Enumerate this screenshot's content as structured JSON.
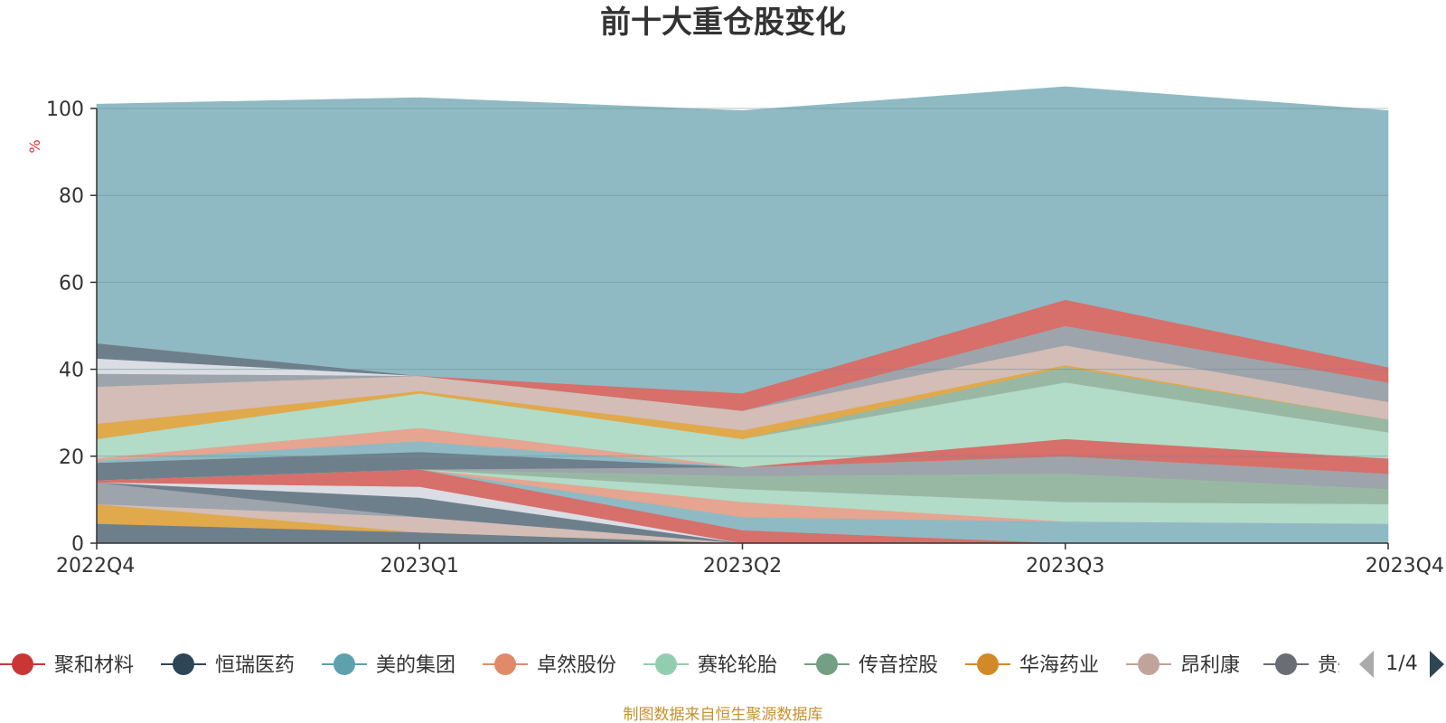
{
  "chart_data": {
    "type": "area",
    "title": "前十大重仓股变化",
    "ylabel": "%",
    "xlabel": "",
    "ylim": [
      0,
      100
    ],
    "y_ticks": [
      "0",
      "20",
      "40",
      "60",
      "80",
      "100"
    ],
    "categories": [
      "2022Q4",
      "2023Q1",
      "2023Q2",
      "2023Q3",
      "2023Q4"
    ],
    "stacked": true,
    "grid": true,
    "legend_position": "bottom",
    "series": [
      {
        "name": "",
        "color": "#6e7f8c",
        "values": [
          4.5,
          2.5,
          0,
          0,
          0
        ]
      },
      {
        "name": "",
        "color": "#e0a94c",
        "values": [
          4.5,
          0,
          0,
          0,
          0
        ]
      },
      {
        "name": "",
        "color": "#d3bdb6",
        "values": [
          0,
          3.5,
          0,
          0,
          0
        ]
      },
      {
        "name": "",
        "color": "#9ea4ab",
        "values": [
          5,
          0,
          0,
          0,
          0
        ]
      },
      {
        "name": "",
        "color": "#6e7f8c",
        "values": [
          0,
          4.5,
          0,
          0,
          0
        ]
      },
      {
        "name": "",
        "color": "#dadde3",
        "values": [
          0,
          2.5,
          0,
          0,
          0
        ]
      },
      {
        "name": "",
        "color": "#d76f6a",
        "values": [
          0.5,
          4,
          3,
          0,
          0
        ]
      },
      {
        "name": "",
        "color": "#8fbac3",
        "values": [
          0,
          0,
          3,
          5,
          4.5
        ]
      },
      {
        "name": "",
        "color": "#e5a590",
        "values": [
          0,
          0,
          3.5,
          0,
          0
        ]
      },
      {
        "name": "",
        "color": "#b2dbc8",
        "values": [
          0,
          0,
          3,
          4.5,
          4.5
        ]
      },
      {
        "name": "",
        "color": "#98b8a3",
        "values": [
          0,
          0,
          3,
          6.5,
          3.5
        ]
      },
      {
        "name": "",
        "color": "#9ea4ab",
        "values": [
          0,
          0,
          2,
          4,
          3.5
        ]
      },
      {
        "name": "",
        "color": "#6e7f8c",
        "values": [
          4,
          4,
          0,
          0,
          0
        ]
      },
      {
        "name": "",
        "color": "#8fbac3",
        "values": [
          0.5,
          2.5,
          0,
          0,
          0
        ]
      },
      {
        "name": "",
        "color": "#e5a590",
        "values": [
          0.5,
          3,
          0,
          0,
          0
        ]
      },
      {
        "name": "",
        "color": "#d76f6a",
        "values": [
          0,
          0,
          0,
          4,
          3.5
        ]
      },
      {
        "name": "",
        "color": "#b2dbc8",
        "values": [
          4.5,
          8,
          6.5,
          13,
          6
        ]
      },
      {
        "name": "",
        "color": "#98b8a3",
        "values": [
          0,
          0,
          0,
          3.5,
          3
        ]
      },
      {
        "name": "",
        "color": "#e0a94c",
        "values": [
          3.5,
          0.5,
          2,
          0.5,
          0
        ]
      },
      {
        "name": "",
        "color": "#d3bdb6",
        "values": [
          8.5,
          3.5,
          4.5,
          4.5,
          4
        ]
      },
      {
        "name": "",
        "color": "#9ea4ab",
        "values": [
          3,
          0,
          0,
          4.5,
          4.5
        ]
      },
      {
        "name": "",
        "color": "#dadde3",
        "values": [
          3.5,
          0,
          0,
          0,
          0
        ]
      },
      {
        "name": "",
        "color": "#6e7f8c",
        "values": [
          3.5,
          0,
          0,
          0,
          0
        ]
      },
      {
        "name": "",
        "color": "#d76f6a",
        "values": [
          0,
          0,
          4,
          6,
          3.5
        ]
      },
      {
        "name": "",
        "color": "#8fbac3",
        "values": [
          55,
          64,
          65,
          49,
          59
        ]
      }
    ]
  },
  "legend": {
    "items": [
      {
        "label": "聚和材料",
        "color": "#c93636"
      },
      {
        "label": "恒瑞医药",
        "color": "#2e4556"
      },
      {
        "label": "美的集团",
        "color": "#5fa0ad"
      },
      {
        "label": "卓然股份",
        "color": "#e08a6a"
      },
      {
        "label": "赛轮轮胎",
        "color": "#93cdb0"
      },
      {
        "label": "传音控股",
        "color": "#739f84"
      },
      {
        "label": "华海药业",
        "color": "#d18a27"
      },
      {
        "label": "昂利康",
        "color": "#c0a39a"
      },
      {
        "label": "贵州",
        "color": "#6b6d75"
      }
    ],
    "page": "1/4"
  },
  "source": "制图数据来自恒生聚源数据库"
}
